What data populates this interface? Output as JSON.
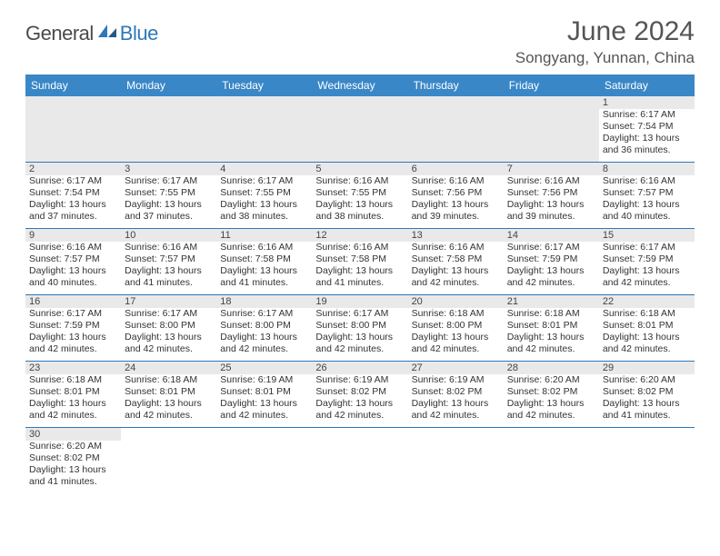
{
  "brand": {
    "part1": "General",
    "part2": "Blue"
  },
  "title": "June 2024",
  "location": "Songyang, Yunnan, China",
  "colors": {
    "header_bg": "#3a87c7",
    "border": "#2d78b8",
    "daynum_bg": "#e9e9e9",
    "text": "#333333",
    "title_text": "#555555"
  },
  "weekdays": [
    "Sunday",
    "Monday",
    "Tuesday",
    "Wednesday",
    "Thursday",
    "Friday",
    "Saturday"
  ],
  "days": {
    "1": {
      "sunrise": "6:17 AM",
      "sunset": "7:54 PM",
      "daylight": "13 hours and 36 minutes."
    },
    "2": {
      "sunrise": "6:17 AM",
      "sunset": "7:54 PM",
      "daylight": "13 hours and 37 minutes."
    },
    "3": {
      "sunrise": "6:17 AM",
      "sunset": "7:55 PM",
      "daylight": "13 hours and 37 minutes."
    },
    "4": {
      "sunrise": "6:17 AM",
      "sunset": "7:55 PM",
      "daylight": "13 hours and 38 minutes."
    },
    "5": {
      "sunrise": "6:16 AM",
      "sunset": "7:55 PM",
      "daylight": "13 hours and 38 minutes."
    },
    "6": {
      "sunrise": "6:16 AM",
      "sunset": "7:56 PM",
      "daylight": "13 hours and 39 minutes."
    },
    "7": {
      "sunrise": "6:16 AM",
      "sunset": "7:56 PM",
      "daylight": "13 hours and 39 minutes."
    },
    "8": {
      "sunrise": "6:16 AM",
      "sunset": "7:57 PM",
      "daylight": "13 hours and 40 minutes."
    },
    "9": {
      "sunrise": "6:16 AM",
      "sunset": "7:57 PM",
      "daylight": "13 hours and 40 minutes."
    },
    "10": {
      "sunrise": "6:16 AM",
      "sunset": "7:57 PM",
      "daylight": "13 hours and 41 minutes."
    },
    "11": {
      "sunrise": "6:16 AM",
      "sunset": "7:58 PM",
      "daylight": "13 hours and 41 minutes."
    },
    "12": {
      "sunrise": "6:16 AM",
      "sunset": "7:58 PM",
      "daylight": "13 hours and 41 minutes."
    },
    "13": {
      "sunrise": "6:16 AM",
      "sunset": "7:58 PM",
      "daylight": "13 hours and 42 minutes."
    },
    "14": {
      "sunrise": "6:17 AM",
      "sunset": "7:59 PM",
      "daylight": "13 hours and 42 minutes."
    },
    "15": {
      "sunrise": "6:17 AM",
      "sunset": "7:59 PM",
      "daylight": "13 hours and 42 minutes."
    },
    "16": {
      "sunrise": "6:17 AM",
      "sunset": "7:59 PM",
      "daylight": "13 hours and 42 minutes."
    },
    "17": {
      "sunrise": "6:17 AM",
      "sunset": "8:00 PM",
      "daylight": "13 hours and 42 minutes."
    },
    "18": {
      "sunrise": "6:17 AM",
      "sunset": "8:00 PM",
      "daylight": "13 hours and 42 minutes."
    },
    "19": {
      "sunrise": "6:17 AM",
      "sunset": "8:00 PM",
      "daylight": "13 hours and 42 minutes."
    },
    "20": {
      "sunrise": "6:18 AM",
      "sunset": "8:00 PM",
      "daylight": "13 hours and 42 minutes."
    },
    "21": {
      "sunrise": "6:18 AM",
      "sunset": "8:01 PM",
      "daylight": "13 hours and 42 minutes."
    },
    "22": {
      "sunrise": "6:18 AM",
      "sunset": "8:01 PM",
      "daylight": "13 hours and 42 minutes."
    },
    "23": {
      "sunrise": "6:18 AM",
      "sunset": "8:01 PM",
      "daylight": "13 hours and 42 minutes."
    },
    "24": {
      "sunrise": "6:18 AM",
      "sunset": "8:01 PM",
      "daylight": "13 hours and 42 minutes."
    },
    "25": {
      "sunrise": "6:19 AM",
      "sunset": "8:01 PM",
      "daylight": "13 hours and 42 minutes."
    },
    "26": {
      "sunrise": "6:19 AM",
      "sunset": "8:02 PM",
      "daylight": "13 hours and 42 minutes."
    },
    "27": {
      "sunrise": "6:19 AM",
      "sunset": "8:02 PM",
      "daylight": "13 hours and 42 minutes."
    },
    "28": {
      "sunrise": "6:20 AM",
      "sunset": "8:02 PM",
      "daylight": "13 hours and 42 minutes."
    },
    "29": {
      "sunrise": "6:20 AM",
      "sunset": "8:02 PM",
      "daylight": "13 hours and 41 minutes."
    },
    "30": {
      "sunrise": "6:20 AM",
      "sunset": "8:02 PM",
      "daylight": "13 hours and 41 minutes."
    }
  },
  "labels": {
    "sunrise": "Sunrise:",
    "sunset": "Sunset:",
    "daylight": "Daylight:"
  },
  "layout": {
    "first_weekday_index": 6,
    "num_days": 30,
    "columns": 7
  }
}
